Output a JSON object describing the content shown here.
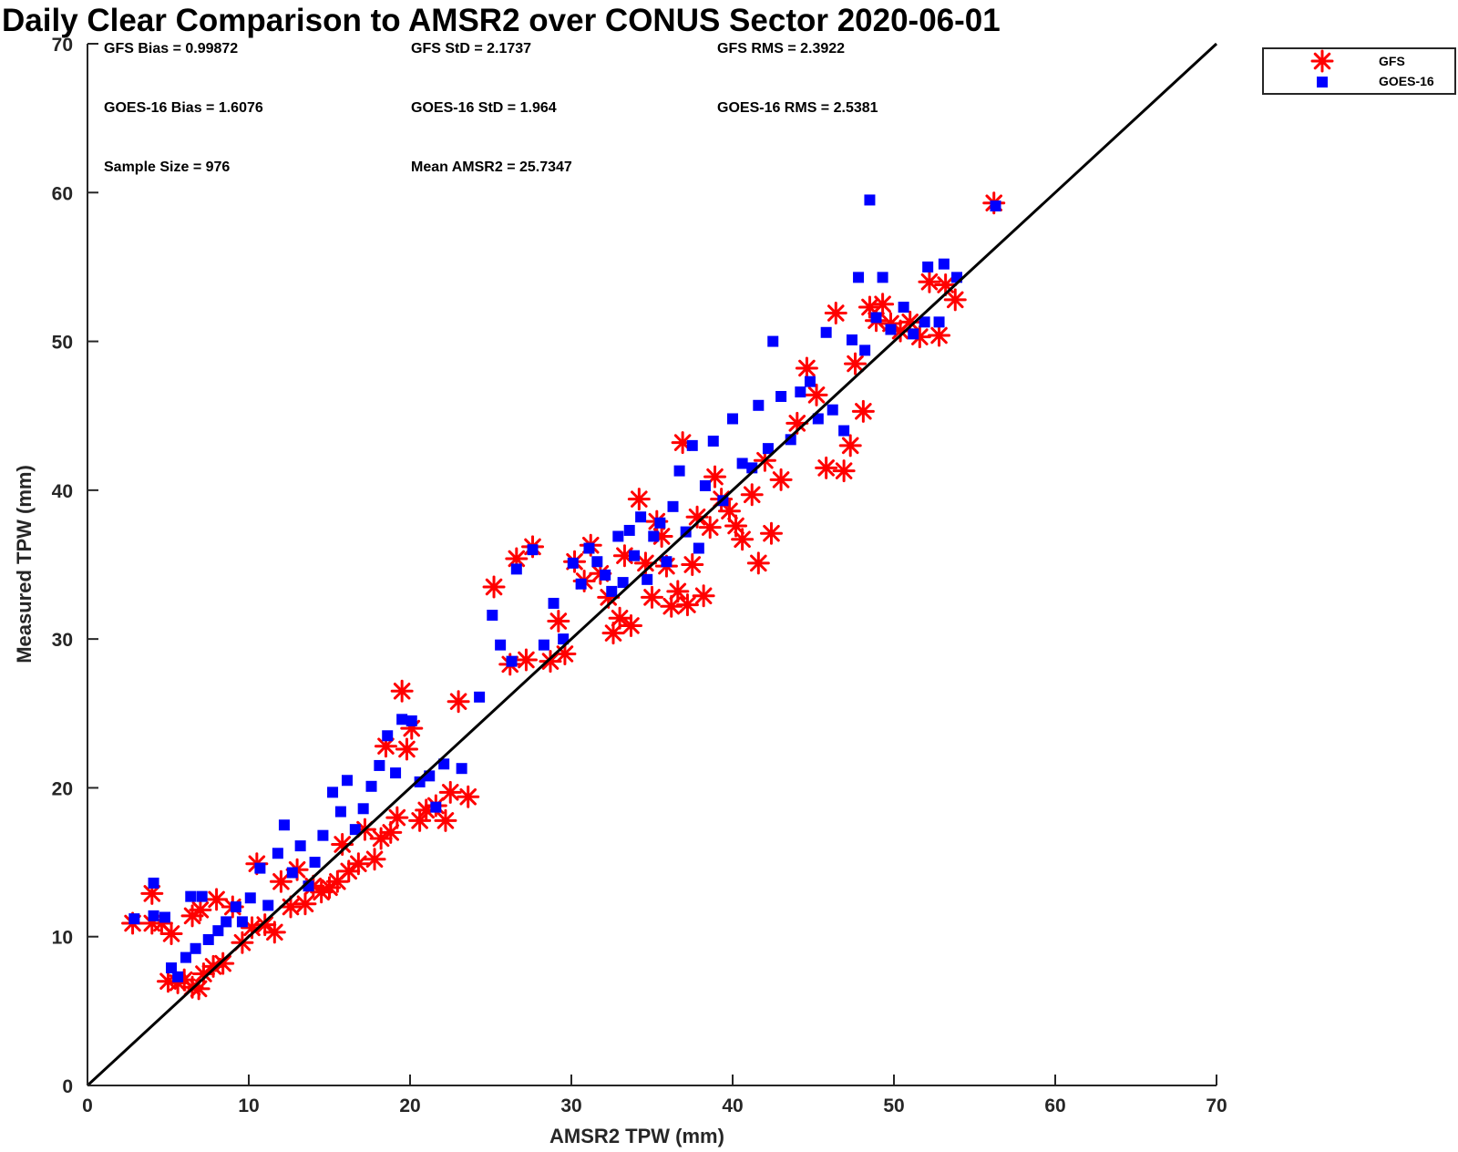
{
  "chart_data": {
    "type": "scatter",
    "title": "Daily Clear Comparison to AMSR2 over CONUS Sector 2020-06-01",
    "xlabel": "AMSR2 TPW (mm)",
    "ylabel": "Measured TPW (mm)",
    "xlim": [
      0,
      70
    ],
    "ylim": [
      0,
      70
    ],
    "xticks": [
      "0",
      "10",
      "20",
      "30",
      "40",
      "50",
      "60",
      "70"
    ],
    "yticks": [
      "0",
      "10",
      "20",
      "30",
      "40",
      "50",
      "60",
      "70"
    ],
    "grid": false,
    "legend_position": "outside-top-right",
    "reference_line": {
      "type": "one-to-one",
      "from": [
        0,
        0
      ],
      "to": [
        70,
        70
      ],
      "color": "#000000"
    },
    "stats": {
      "gfs_bias": "GFS Bias = 0.99872",
      "gfs_std": "GFS StD = 2.1737",
      "gfs_rms": "GFS RMS = 2.3922",
      "goes_bias": "GOES-16 Bias = 1.6076",
      "goes_std": "GOES-16 StD = 1.964",
      "goes_rms": "GOES-16 RMS = 2.5381",
      "sample_size": "Sample Size = 976",
      "mean_amsr2": "Mean AMSR2 = 25.7347"
    },
    "series": [
      {
        "name": "GFS",
        "marker": "asterisk",
        "color": "#ff0000",
        "points": [
          [
            2.8,
            10.9
          ],
          [
            4.0,
            10.9
          ],
          [
            4.6,
            10.9
          ],
          [
            4.0,
            12.9
          ],
          [
            5.2,
            10.2
          ],
          [
            5.0,
            7.0
          ],
          [
            5.6,
            6.9
          ],
          [
            6.0,
            7.1
          ],
          [
            6.5,
            6.6
          ],
          [
            6.9,
            6.5
          ],
          [
            7.2,
            7.5
          ],
          [
            7.8,
            8.0
          ],
          [
            8.4,
            8.2
          ],
          [
            6.5,
            11.4
          ],
          [
            7.0,
            11.8
          ],
          [
            8.0,
            12.5
          ],
          [
            9.0,
            12.0
          ],
          [
            9.6,
            9.6
          ],
          [
            10.2,
            10.6
          ],
          [
            10.5,
            14.9
          ],
          [
            11.0,
            10.8
          ],
          [
            11.6,
            10.3
          ],
          [
            12.0,
            13.7
          ],
          [
            12.6,
            12.0
          ],
          [
            13.0,
            14.5
          ],
          [
            13.5,
            12.2
          ],
          [
            14.0,
            13.4
          ],
          [
            14.5,
            13.0
          ],
          [
            15.0,
            13.3
          ],
          [
            15.5,
            13.7
          ],
          [
            15.8,
            16.2
          ],
          [
            16.2,
            14.4
          ],
          [
            16.8,
            14.9
          ],
          [
            17.2,
            17.2
          ],
          [
            17.8,
            15.2
          ],
          [
            18.2,
            16.6
          ],
          [
            18.5,
            22.8
          ],
          [
            18.8,
            17.0
          ],
          [
            19.2,
            18.0
          ],
          [
            19.5,
            26.5
          ],
          [
            19.8,
            22.6
          ],
          [
            20.1,
            24.0
          ],
          [
            20.6,
            17.8
          ],
          [
            21.0,
            18.5
          ],
          [
            21.6,
            18.8
          ],
          [
            22.2,
            17.8
          ],
          [
            22.5,
            19.7
          ],
          [
            23.6,
            19.4
          ],
          [
            23.0,
            25.8
          ],
          [
            25.2,
            33.5
          ],
          [
            26.2,
            28.3
          ],
          [
            26.6,
            35.4
          ],
          [
            27.2,
            28.6
          ],
          [
            27.6,
            36.2
          ],
          [
            28.7,
            28.5
          ],
          [
            29.2,
            31.2
          ],
          [
            29.6,
            29.0
          ],
          [
            30.2,
            35.2
          ],
          [
            30.8,
            33.9
          ],
          [
            31.2,
            36.3
          ],
          [
            31.8,
            34.4
          ],
          [
            32.3,
            32.8
          ],
          [
            32.6,
            30.4
          ],
          [
            33.0,
            31.4
          ],
          [
            33.3,
            35.6
          ],
          [
            33.7,
            30.9
          ],
          [
            34.2,
            39.4
          ],
          [
            34.6,
            35.1
          ],
          [
            35.0,
            32.8
          ],
          [
            35.3,
            37.9
          ],
          [
            35.6,
            36.9
          ],
          [
            35.9,
            34.9
          ],
          [
            36.2,
            32.2
          ],
          [
            36.6,
            33.2
          ],
          [
            36.9,
            43.2
          ],
          [
            37.2,
            32.3
          ],
          [
            37.5,
            35.0
          ],
          [
            37.8,
            38.2
          ],
          [
            38.2,
            32.9
          ],
          [
            38.6,
            37.5
          ],
          [
            38.9,
            40.9
          ],
          [
            39.3,
            39.4
          ],
          [
            39.8,
            38.6
          ],
          [
            40.2,
            37.6
          ],
          [
            40.6,
            36.7
          ],
          [
            41.2,
            39.7
          ],
          [
            41.6,
            35.1
          ],
          [
            42.0,
            42.0
          ],
          [
            42.4,
            37.1
          ],
          [
            43.0,
            40.7
          ],
          [
            44.0,
            44.5
          ],
          [
            44.6,
            48.2
          ],
          [
            45.2,
            46.4
          ],
          [
            45.8,
            41.5
          ],
          [
            46.4,
            51.9
          ],
          [
            46.9,
            41.3
          ],
          [
            47.3,
            43.0
          ],
          [
            47.6,
            48.5
          ],
          [
            48.1,
            45.3
          ],
          [
            48.5,
            52.3
          ],
          [
            48.9,
            51.4
          ],
          [
            49.3,
            52.5
          ],
          [
            49.8,
            51.2
          ],
          [
            50.4,
            50.7
          ],
          [
            51.0,
            51.3
          ],
          [
            51.6,
            50.3
          ],
          [
            52.2,
            54.0
          ],
          [
            52.8,
            50.4
          ],
          [
            53.2,
            53.8
          ],
          [
            53.8,
            52.8
          ],
          [
            56.2,
            59.3
          ]
        ]
      },
      {
        "name": "GOES-16",
        "marker": "square",
        "color": "#0000ff",
        "points": [
          [
            2.9,
            11.2
          ],
          [
            4.1,
            13.6
          ],
          [
            4.1,
            11.4
          ],
          [
            4.8,
            11.3
          ],
          [
            5.2,
            7.9
          ],
          [
            5.6,
            7.3
          ],
          [
            6.1,
            8.6
          ],
          [
            6.4,
            12.7
          ],
          [
            6.7,
            9.2
          ],
          [
            7.1,
            12.7
          ],
          [
            7.5,
            9.8
          ],
          [
            8.1,
            10.4
          ],
          [
            8.6,
            11.0
          ],
          [
            9.2,
            12.0
          ],
          [
            9.6,
            11.0
          ],
          [
            10.1,
            12.6
          ],
          [
            10.7,
            14.6
          ],
          [
            11.2,
            12.1
          ],
          [
            11.8,
            15.6
          ],
          [
            12.2,
            17.5
          ],
          [
            12.7,
            14.3
          ],
          [
            13.2,
            16.1
          ],
          [
            13.7,
            13.4
          ],
          [
            14.1,
            15.0
          ],
          [
            14.6,
            16.8
          ],
          [
            15.2,
            19.7
          ],
          [
            15.7,
            18.4
          ],
          [
            16.1,
            20.5
          ],
          [
            16.6,
            17.2
          ],
          [
            17.1,
            18.6
          ],
          [
            17.6,
            20.1
          ],
          [
            18.1,
            21.5
          ],
          [
            18.6,
            23.5
          ],
          [
            19.1,
            21.0
          ],
          [
            19.5,
            24.6
          ],
          [
            20.1,
            24.5
          ],
          [
            20.6,
            20.4
          ],
          [
            21.2,
            20.8
          ],
          [
            21.6,
            18.7
          ],
          [
            22.1,
            21.6
          ],
          [
            23.2,
            21.3
          ],
          [
            24.3,
            26.1
          ],
          [
            25.1,
            31.6
          ],
          [
            25.6,
            29.6
          ],
          [
            26.3,
            28.5
          ],
          [
            26.6,
            34.7
          ],
          [
            27.6,
            36.0
          ],
          [
            28.3,
            29.6
          ],
          [
            28.9,
            32.4
          ],
          [
            29.5,
            30.0
          ],
          [
            30.1,
            35.1
          ],
          [
            30.6,
            33.7
          ],
          [
            31.1,
            36.1
          ],
          [
            31.6,
            35.2
          ],
          [
            32.1,
            34.3
          ],
          [
            32.5,
            33.2
          ],
          [
            32.9,
            36.9
          ],
          [
            33.2,
            33.8
          ],
          [
            33.6,
            37.3
          ],
          [
            33.9,
            35.6
          ],
          [
            34.3,
            38.2
          ],
          [
            34.7,
            34.0
          ],
          [
            35.1,
            36.9
          ],
          [
            35.5,
            37.8
          ],
          [
            35.9,
            35.2
          ],
          [
            36.3,
            38.9
          ],
          [
            36.7,
            41.3
          ],
          [
            37.1,
            37.2
          ],
          [
            37.5,
            43.0
          ],
          [
            37.9,
            36.1
          ],
          [
            38.3,
            40.3
          ],
          [
            38.8,
            43.3
          ],
          [
            39.4,
            39.3
          ],
          [
            40.0,
            44.8
          ],
          [
            40.6,
            41.8
          ],
          [
            41.2,
            41.5
          ],
          [
            41.6,
            45.7
          ],
          [
            42.2,
            42.8
          ],
          [
            42.5,
            50.0
          ],
          [
            43.0,
            46.3
          ],
          [
            43.6,
            43.4
          ],
          [
            44.2,
            46.6
          ],
          [
            44.8,
            47.3
          ],
          [
            45.3,
            44.8
          ],
          [
            45.8,
            50.6
          ],
          [
            46.2,
            45.4
          ],
          [
            46.9,
            44.0
          ],
          [
            47.4,
            50.1
          ],
          [
            47.8,
            54.3
          ],
          [
            48.2,
            49.4
          ],
          [
            48.5,
            59.5
          ],
          [
            48.9,
            51.6
          ],
          [
            49.3,
            54.3
          ],
          [
            49.8,
            50.8
          ],
          [
            50.6,
            52.3
          ],
          [
            51.2,
            50.5
          ],
          [
            51.9,
            51.3
          ],
          [
            52.1,
            55.0
          ],
          [
            52.8,
            51.3
          ],
          [
            53.1,
            55.2
          ],
          [
            53.9,
            54.3
          ],
          [
            56.3,
            59.1
          ]
        ]
      }
    ]
  }
}
